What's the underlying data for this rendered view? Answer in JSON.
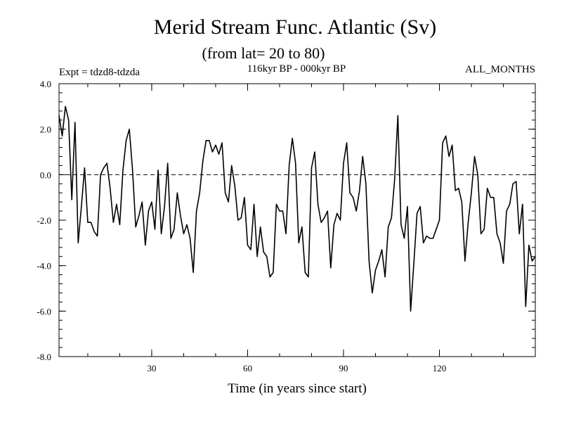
{
  "chart_data": {
    "type": "line",
    "title": "Merid Stream Func. Atlantic (Sv)",
    "subtitle": "(from lat= 20 to 80)",
    "header_left": "Expt = tdzd8-tdzda",
    "header_center": "116kyr BP - 000kyr BP",
    "header_right": "ALL_MONTHS",
    "xlabel": "Time (in years since start)",
    "ylabel": "",
    "xlim": [
      1,
      150
    ],
    "ylim": [
      -8.0,
      4.0
    ],
    "x_ticks": [
      30,
      60,
      90,
      120
    ],
    "x_tick_labels": [
      "30",
      "60",
      "90",
      "120"
    ],
    "y_ticks": [
      -8,
      -6,
      -4,
      -2,
      0,
      2,
      4
    ],
    "y_tick_labels": [
      "-8.0",
      "-6.0",
      "-4.0",
      "-2.0",
      "0.0",
      "2.0",
      "4.0"
    ],
    "reference_line": 0.0,
    "series": [
      {
        "name": "Merid Stream Func.",
        "x_start": 1,
        "x_step": 1,
        "values": [
          2.6,
          1.7,
          3.0,
          2.4,
          -1.1,
          2.3,
          -3.0,
          -1.4,
          0.3,
          -2.1,
          -2.1,
          -2.5,
          -2.7,
          0.0,
          0.3,
          0.5,
          -0.6,
          -2.1,
          -1.3,
          -2.2,
          0.2,
          1.5,
          2.0,
          0.2,
          -2.3,
          -1.8,
          -1.2,
          -3.1,
          -1.6,
          -1.2,
          -2.4,
          0.2,
          -2.6,
          -1.4,
          0.5,
          -2.8,
          -2.4,
          -0.8,
          -1.8,
          -2.6,
          -2.2,
          -2.8,
          -4.3,
          -1.6,
          -0.8,
          0.6,
          1.5,
          1.5,
          1.0,
          1.3,
          0.9,
          1.4,
          -0.8,
          -1.2,
          0.4,
          -0.5,
          -2.0,
          -1.9,
          -1.0,
          -3.1,
          -3.3,
          -1.3,
          -3.6,
          -2.3,
          -3.4,
          -3.6,
          -4.5,
          -4.3,
          -1.3,
          -1.6,
          -1.6,
          -2.6,
          0.4,
          1.6,
          0.5,
          -3.0,
          -2.3,
          -4.3,
          -4.5,
          0.3,
          1.0,
          -1.3,
          -2.1,
          -1.9,
          -1.6,
          -4.1,
          -2.2,
          -1.7,
          -2.0,
          0.5,
          1.4,
          -0.8,
          -1.0,
          -1.6,
          -0.7,
          0.8,
          -0.4,
          -3.8,
          -5.2,
          -4.2,
          -3.8,
          -3.3,
          -4.5,
          -2.3,
          -1.9,
          -0.2,
          2.6,
          -2.2,
          -2.8,
          -1.4,
          -6.0,
          -3.9,
          -1.7,
          -1.4,
          -3.0,
          -2.7,
          -2.8,
          -2.8,
          -2.4,
          -2.0,
          1.4,
          1.7,
          0.8,
          1.3,
          -0.7,
          -0.6,
          -1.2,
          -3.8,
          -2.1,
          -0.8,
          0.8,
          0.0,
          -2.6,
          -2.4,
          -0.6,
          -1.0,
          -1.0,
          -2.6,
          -3.0,
          -3.9,
          -1.6,
          -1.3,
          -0.4,
          -0.3,
          -2.6,
          -1.3,
          -5.8,
          -3.1,
          -3.8,
          -3.6
        ]
      }
    ]
  }
}
